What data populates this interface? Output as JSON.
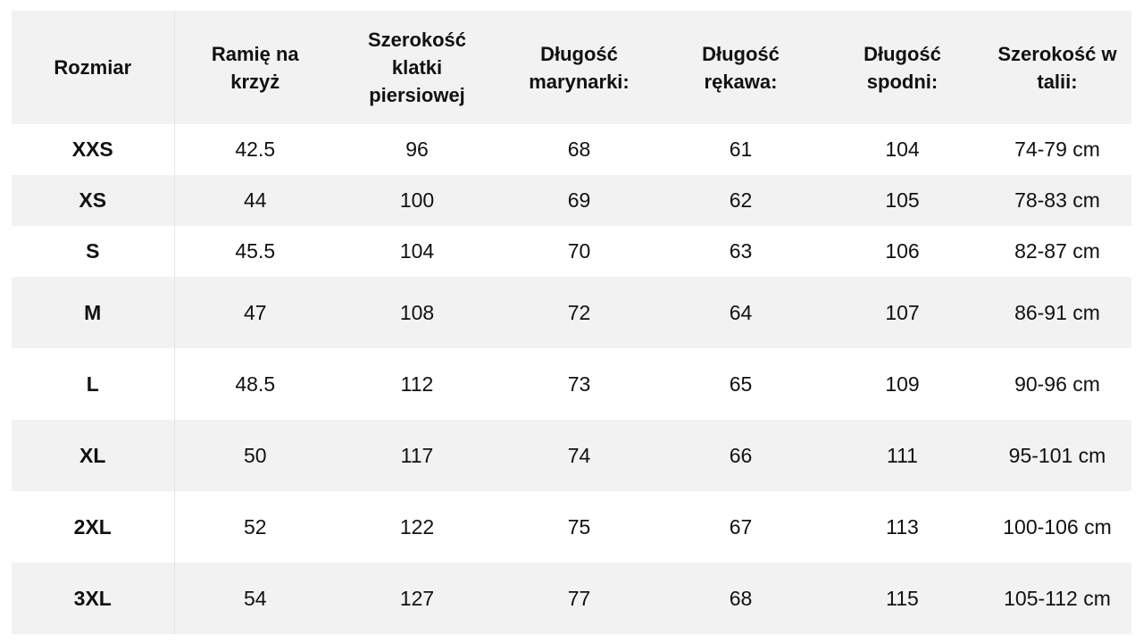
{
  "table": {
    "headers": [
      "Rozmiar",
      "Ramię na krzyż",
      "Szerokość klatki piersiowej",
      "Długość marynarki:",
      "Długość rękawa:",
      "Długość spodni:",
      "Szerokość w talii:"
    ],
    "rows": [
      [
        "XXS",
        "42.5",
        "96",
        "68",
        "61",
        "104",
        "74-79 cm"
      ],
      [
        "XS",
        "44",
        "100",
        "69",
        "62",
        "105",
        "78-83 cm"
      ],
      [
        "S",
        "45.5",
        "104",
        "70",
        "63",
        "106",
        "82-87 cm"
      ],
      [
        "M",
        "47",
        "108",
        "72",
        "64",
        "107",
        "86-91 cm"
      ],
      [
        "L",
        "48.5",
        "112",
        "73",
        "65",
        "109",
        "90-96 cm"
      ],
      [
        "XL",
        "50",
        "117",
        "74",
        "66",
        "111",
        "95-101 cm"
      ],
      [
        "2XL",
        "52",
        "122",
        "75",
        "67",
        "113",
        "100-106 cm"
      ],
      [
        "3XL",
        "54",
        "127",
        "77",
        "68",
        "115",
        "105-112 cm"
      ]
    ]
  },
  "colors": {
    "stripe": "#f2f2f2",
    "background": "#ffffff",
    "text": "#111111"
  }
}
